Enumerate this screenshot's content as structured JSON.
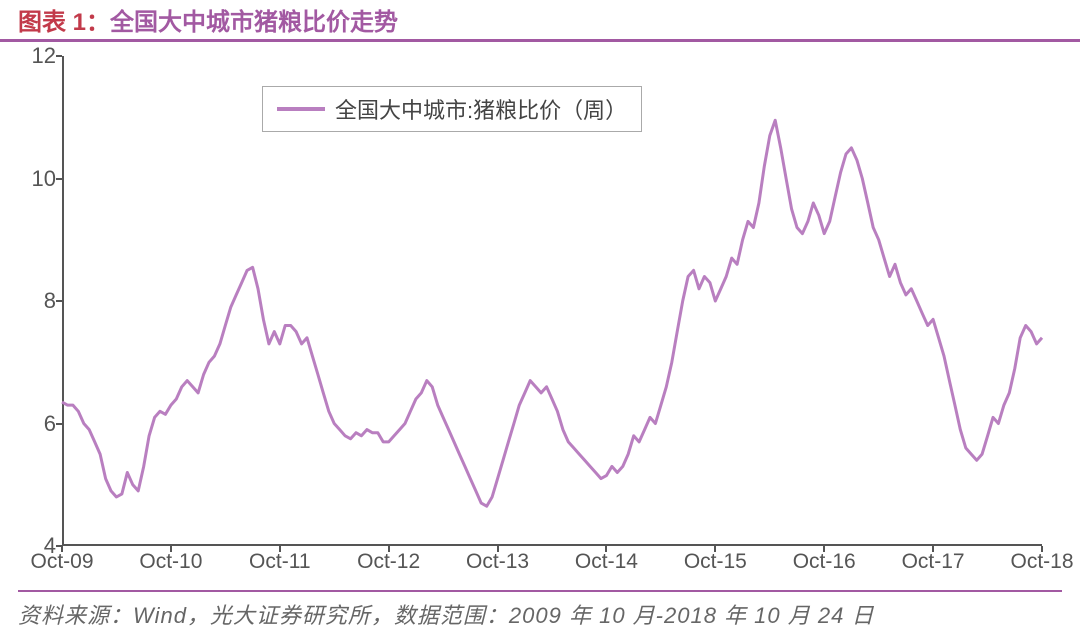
{
  "title": {
    "prefix": "图表 1：",
    "text": "全国大中城市猪粮比价走势",
    "prefix_color": "#c23a4a",
    "text_color": "#a259a2",
    "border_color": "#a259a2",
    "fontsize": 24
  },
  "chart": {
    "type": "line",
    "background_color": "#ffffff",
    "series_color": "#b97fc0",
    "line_width": 3,
    "ylim": [
      4,
      12
    ],
    "ytick_step": 2,
    "yticks": [
      4,
      6,
      8,
      10,
      12
    ],
    "xlim": [
      0,
      9
    ],
    "xticks": [
      {
        "pos": 0,
        "label": "Oct-09"
      },
      {
        "pos": 1,
        "label": "Oct-10"
      },
      {
        "pos": 2,
        "label": "Oct-11"
      },
      {
        "pos": 3,
        "label": "Oct-12"
      },
      {
        "pos": 4,
        "label": "Oct-13"
      },
      {
        "pos": 5,
        "label": "Oct-14"
      },
      {
        "pos": 6,
        "label": "Oct-15"
      },
      {
        "pos": 7,
        "label": "Oct-16"
      },
      {
        "pos": 8,
        "label": "Oct-17"
      },
      {
        "pos": 9,
        "label": "Oct-18"
      }
    ],
    "axis_color": "#555555",
    "tick_fontsize": 22,
    "legend": {
      "label": "全国大中城市:猪粮比价（周）",
      "border_color": "#aaaaaa",
      "fontsize": 22
    },
    "data": [
      {
        "x": 0.0,
        "y": 6.35
      },
      {
        "x": 0.05,
        "y": 6.3
      },
      {
        "x": 0.1,
        "y": 6.3
      },
      {
        "x": 0.15,
        "y": 6.2
      },
      {
        "x": 0.2,
        "y": 6.0
      },
      {
        "x": 0.25,
        "y": 5.9
      },
      {
        "x": 0.3,
        "y": 5.7
      },
      {
        "x": 0.35,
        "y": 5.5
      },
      {
        "x": 0.4,
        "y": 5.1
      },
      {
        "x": 0.45,
        "y": 4.9
      },
      {
        "x": 0.5,
        "y": 4.8
      },
      {
        "x": 0.55,
        "y": 4.85
      },
      {
        "x": 0.6,
        "y": 5.2
      },
      {
        "x": 0.65,
        "y": 5.0
      },
      {
        "x": 0.7,
        "y": 4.9
      },
      {
        "x": 0.75,
        "y": 5.3
      },
      {
        "x": 0.8,
        "y": 5.8
      },
      {
        "x": 0.85,
        "y": 6.1
      },
      {
        "x": 0.9,
        "y": 6.2
      },
      {
        "x": 0.95,
        "y": 6.15
      },
      {
        "x": 1.0,
        "y": 6.3
      },
      {
        "x": 1.05,
        "y": 6.4
      },
      {
        "x": 1.1,
        "y": 6.6
      },
      {
        "x": 1.15,
        "y": 6.7
      },
      {
        "x": 1.2,
        "y": 6.6
      },
      {
        "x": 1.25,
        "y": 6.5
      },
      {
        "x": 1.3,
        "y": 6.8
      },
      {
        "x": 1.35,
        "y": 7.0
      },
      {
        "x": 1.4,
        "y": 7.1
      },
      {
        "x": 1.45,
        "y": 7.3
      },
      {
        "x": 1.5,
        "y": 7.6
      },
      {
        "x": 1.55,
        "y": 7.9
      },
      {
        "x": 1.6,
        "y": 8.1
      },
      {
        "x": 1.65,
        "y": 8.3
      },
      {
        "x": 1.7,
        "y": 8.5
      },
      {
        "x": 1.75,
        "y": 8.55
      },
      {
        "x": 1.8,
        "y": 8.2
      },
      {
        "x": 1.85,
        "y": 7.7
      },
      {
        "x": 1.9,
        "y": 7.3
      },
      {
        "x": 1.95,
        "y": 7.5
      },
      {
        "x": 2.0,
        "y": 7.3
      },
      {
        "x": 2.05,
        "y": 7.6
      },
      {
        "x": 2.1,
        "y": 7.6
      },
      {
        "x": 2.15,
        "y": 7.5
      },
      {
        "x": 2.2,
        "y": 7.3
      },
      {
        "x": 2.25,
        "y": 7.4
      },
      {
        "x": 2.3,
        "y": 7.1
      },
      {
        "x": 2.35,
        "y": 6.8
      },
      {
        "x": 2.4,
        "y": 6.5
      },
      {
        "x": 2.45,
        "y": 6.2
      },
      {
        "x": 2.5,
        "y": 6.0
      },
      {
        "x": 2.55,
        "y": 5.9
      },
      {
        "x": 2.6,
        "y": 5.8
      },
      {
        "x": 2.65,
        "y": 5.75
      },
      {
        "x": 2.7,
        "y": 5.85
      },
      {
        "x": 2.75,
        "y": 5.8
      },
      {
        "x": 2.8,
        "y": 5.9
      },
      {
        "x": 2.85,
        "y": 5.85
      },
      {
        "x": 2.9,
        "y": 5.85
      },
      {
        "x": 2.95,
        "y": 5.7
      },
      {
        "x": 3.0,
        "y": 5.7
      },
      {
        "x": 3.05,
        "y": 5.8
      },
      {
        "x": 3.1,
        "y": 5.9
      },
      {
        "x": 3.15,
        "y": 6.0
      },
      {
        "x": 3.2,
        "y": 6.2
      },
      {
        "x": 3.25,
        "y": 6.4
      },
      {
        "x": 3.3,
        "y": 6.5
      },
      {
        "x": 3.35,
        "y": 6.7
      },
      {
        "x": 3.4,
        "y": 6.6
      },
      {
        "x": 3.45,
        "y": 6.3
      },
      {
        "x": 3.5,
        "y": 6.1
      },
      {
        "x": 3.55,
        "y": 5.9
      },
      {
        "x": 3.6,
        "y": 5.7
      },
      {
        "x": 3.65,
        "y": 5.5
      },
      {
        "x": 3.7,
        "y": 5.3
      },
      {
        "x": 3.75,
        "y": 5.1
      },
      {
        "x": 3.8,
        "y": 4.9
      },
      {
        "x": 3.85,
        "y": 4.7
      },
      {
        "x": 3.9,
        "y": 4.65
      },
      {
        "x": 3.95,
        "y": 4.8
      },
      {
        "x": 4.0,
        "y": 5.1
      },
      {
        "x": 4.05,
        "y": 5.4
      },
      {
        "x": 4.1,
        "y": 5.7
      },
      {
        "x": 4.15,
        "y": 6.0
      },
      {
        "x": 4.2,
        "y": 6.3
      },
      {
        "x": 4.25,
        "y": 6.5
      },
      {
        "x": 4.3,
        "y": 6.7
      },
      {
        "x": 4.35,
        "y": 6.6
      },
      {
        "x": 4.4,
        "y": 6.5
      },
      {
        "x": 4.45,
        "y": 6.6
      },
      {
        "x": 4.5,
        "y": 6.4
      },
      {
        "x": 4.55,
        "y": 6.2
      },
      {
        "x": 4.6,
        "y": 5.9
      },
      {
        "x": 4.65,
        "y": 5.7
      },
      {
        "x": 4.7,
        "y": 5.6
      },
      {
        "x": 4.75,
        "y": 5.5
      },
      {
        "x": 4.8,
        "y": 5.4
      },
      {
        "x": 4.85,
        "y": 5.3
      },
      {
        "x": 4.9,
        "y": 5.2
      },
      {
        "x": 4.95,
        "y": 5.1
      },
      {
        "x": 5.0,
        "y": 5.15
      },
      {
        "x": 5.05,
        "y": 5.3
      },
      {
        "x": 5.1,
        "y": 5.2
      },
      {
        "x": 5.15,
        "y": 5.3
      },
      {
        "x": 5.2,
        "y": 5.5
      },
      {
        "x": 5.25,
        "y": 5.8
      },
      {
        "x": 5.3,
        "y": 5.7
      },
      {
        "x": 5.35,
        "y": 5.9
      },
      {
        "x": 5.4,
        "y": 6.1
      },
      {
        "x": 5.45,
        "y": 6.0
      },
      {
        "x": 5.5,
        "y": 6.3
      },
      {
        "x": 5.55,
        "y": 6.6
      },
      {
        "x": 5.6,
        "y": 7.0
      },
      {
        "x": 5.65,
        "y": 7.5
      },
      {
        "x": 5.7,
        "y": 8.0
      },
      {
        "x": 5.75,
        "y": 8.4
      },
      {
        "x": 5.8,
        "y": 8.5
      },
      {
        "x": 5.85,
        "y": 8.2
      },
      {
        "x": 5.9,
        "y": 8.4
      },
      {
        "x": 5.95,
        "y": 8.3
      },
      {
        "x": 6.0,
        "y": 8.0
      },
      {
        "x": 6.05,
        "y": 8.2
      },
      {
        "x": 6.1,
        "y": 8.4
      },
      {
        "x": 6.15,
        "y": 8.7
      },
      {
        "x": 6.2,
        "y": 8.6
      },
      {
        "x": 6.25,
        "y": 9.0
      },
      {
        "x": 6.3,
        "y": 9.3
      },
      {
        "x": 6.35,
        "y": 9.2
      },
      {
        "x": 6.4,
        "y": 9.6
      },
      {
        "x": 6.45,
        "y": 10.2
      },
      {
        "x": 6.5,
        "y": 10.7
      },
      {
        "x": 6.55,
        "y": 10.95
      },
      {
        "x": 6.6,
        "y": 10.5
      },
      {
        "x": 6.65,
        "y": 10.0
      },
      {
        "x": 6.7,
        "y": 9.5
      },
      {
        "x": 6.75,
        "y": 9.2
      },
      {
        "x": 6.8,
        "y": 9.1
      },
      {
        "x": 6.85,
        "y": 9.3
      },
      {
        "x": 6.9,
        "y": 9.6
      },
      {
        "x": 6.95,
        "y": 9.4
      },
      {
        "x": 7.0,
        "y": 9.1
      },
      {
        "x": 7.05,
        "y": 9.3
      },
      {
        "x": 7.1,
        "y": 9.7
      },
      {
        "x": 7.15,
        "y": 10.1
      },
      {
        "x": 7.2,
        "y": 10.4
      },
      {
        "x": 7.25,
        "y": 10.5
      },
      {
        "x": 7.3,
        "y": 10.3
      },
      {
        "x": 7.35,
        "y": 10.0
      },
      {
        "x": 7.4,
        "y": 9.6
      },
      {
        "x": 7.45,
        "y": 9.2
      },
      {
        "x": 7.5,
        "y": 9.0
      },
      {
        "x": 7.55,
        "y": 8.7
      },
      {
        "x": 7.6,
        "y": 8.4
      },
      {
        "x": 7.65,
        "y": 8.6
      },
      {
        "x": 7.7,
        "y": 8.3
      },
      {
        "x": 7.75,
        "y": 8.1
      },
      {
        "x": 7.8,
        "y": 8.2
      },
      {
        "x": 7.85,
        "y": 8.0
      },
      {
        "x": 7.9,
        "y": 7.8
      },
      {
        "x": 7.95,
        "y": 7.6
      },
      {
        "x": 8.0,
        "y": 7.7
      },
      {
        "x": 8.05,
        "y": 7.4
      },
      {
        "x": 8.1,
        "y": 7.1
      },
      {
        "x": 8.15,
        "y": 6.7
      },
      {
        "x": 8.2,
        "y": 6.3
      },
      {
        "x": 8.25,
        "y": 5.9
      },
      {
        "x": 8.3,
        "y": 5.6
      },
      {
        "x": 8.35,
        "y": 5.5
      },
      {
        "x": 8.4,
        "y": 5.4
      },
      {
        "x": 8.45,
        "y": 5.5
      },
      {
        "x": 8.5,
        "y": 5.8
      },
      {
        "x": 8.55,
        "y": 6.1
      },
      {
        "x": 8.6,
        "y": 6.0
      },
      {
        "x": 8.65,
        "y": 6.3
      },
      {
        "x": 8.7,
        "y": 6.5
      },
      {
        "x": 8.75,
        "y": 6.9
      },
      {
        "x": 8.8,
        "y": 7.4
      },
      {
        "x": 8.85,
        "y": 7.6
      },
      {
        "x": 8.9,
        "y": 7.5
      },
      {
        "x": 8.95,
        "y": 7.3
      },
      {
        "x": 9.0,
        "y": 7.4
      }
    ]
  },
  "source": {
    "text": "资料来源：Wind，光大证券研究所，数据范围：2009 年 10 月-2018 年 10 月 24 日",
    "color": "#666666",
    "border_color": "#a259a2",
    "fontsize": 22
  }
}
